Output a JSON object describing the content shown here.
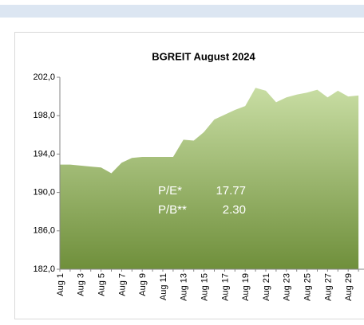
{
  "chart_data": {
    "type": "area",
    "title": "BGREIT August 2024",
    "categories": [
      "Aug 1",
      null,
      "Aug 3",
      null,
      "Aug 5",
      null,
      "Aug 7",
      null,
      "Aug 9",
      null,
      "Aug 11",
      null,
      "Aug 13",
      null,
      "Aug 15",
      null,
      "Aug 17",
      null,
      "Aug 19",
      null,
      "Aug 21",
      null,
      "Aug 23",
      null,
      "Aug 25",
      null,
      "Aug 27",
      null,
      "Aug 29",
      null
    ],
    "values": [
      192.9,
      192.9,
      192.8,
      192.7,
      192.6,
      192.0,
      193.1,
      193.6,
      193.7,
      193.7,
      193.7,
      193.7,
      195.5,
      195.4,
      196.3,
      197.6,
      198.1,
      198.6,
      199.0,
      200.9,
      200.6,
      199.4,
      199.9,
      200.2,
      200.4,
      200.7,
      199.9,
      200.6,
      200.0,
      200.1
    ],
    "colors": [
      "#c8dda3",
      "#6f8f3b"
    ],
    "ylim": [
      182,
      202
    ],
    "yticks": [
      {
        "value": 182,
        "label": "182,0"
      },
      {
        "value": 186,
        "label": "186,0"
      },
      {
        "value": 190,
        "label": "190,0"
      },
      {
        "value": 194,
        "label": "194,0"
      },
      {
        "value": 198,
        "label": "198,0"
      },
      {
        "value": 202,
        "label": "202,0"
      }
    ],
    "annotations": [
      {
        "label": "P/E*",
        "value": "17.77"
      },
      {
        "label": "P/B**",
        "value": "2.30"
      }
    ]
  }
}
